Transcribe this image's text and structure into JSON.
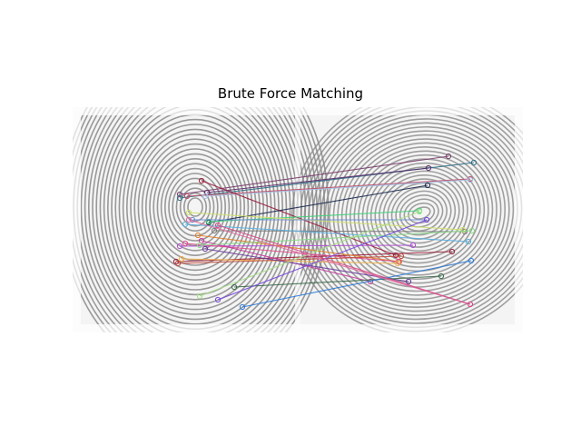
{
  "figure": {
    "title": "Brute Force Matching"
  },
  "image": {
    "description_kind": "two fingerprint images side by side with feature match lines",
    "background": "#f4f4f4",
    "ridge_color": "#8a8a8a"
  },
  "matches": [
    {
      "color": "#7b3f6e"
    },
    {
      "color": "#2f6f86"
    },
    {
      "color": "#5a2b6a"
    },
    {
      "color": "#c0506a"
    },
    {
      "color": "#a3c3e6"
    },
    {
      "color": "#9a1f3e"
    },
    {
      "color": "#1b2a4f"
    },
    {
      "color": "#7a7a7a"
    },
    {
      "color": "#3fd27a"
    },
    {
      "color": "#cfe06a"
    },
    {
      "color": "#6a8ad8"
    },
    {
      "color": "#9b1f3a"
    },
    {
      "color": "#5ab0e0"
    },
    {
      "color": "#b04ed3"
    },
    {
      "color": "#e07f2a"
    },
    {
      "color": "#e04a8a"
    },
    {
      "color": "#c43a9e"
    },
    {
      "color": "#f0b04a"
    },
    {
      "color": "#c04a3a"
    },
    {
      "color": "#6a3a9e"
    },
    {
      "color": "#8ad88a"
    },
    {
      "color": "#3a6a4a"
    },
    {
      "color": "#2a7ad8"
    },
    {
      "color": "#7a4ae0"
    },
    {
      "color": "#a8e08a"
    },
    {
      "color": "#e06a9e"
    },
    {
      "color": "#d84a8a"
    }
  ]
}
